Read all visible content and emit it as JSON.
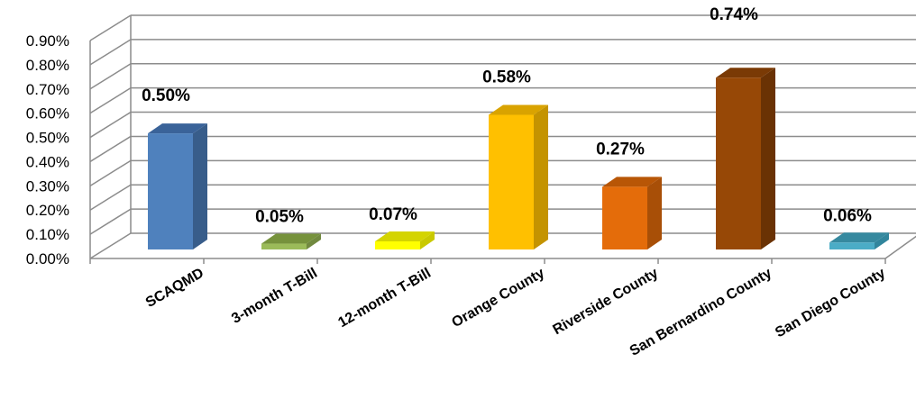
{
  "chart_data": {
    "type": "bar",
    "categories": [
      "SCAQMD",
      "3-month T-Bill",
      "12-month T-Bill",
      "Orange County",
      "Riverside County",
      "San Bernardino County",
      "San Diego County"
    ],
    "values": [
      0.5,
      0.05,
      0.07,
      0.58,
      0.27,
      0.74,
      0.06
    ],
    "data_labels": [
      "0.50%",
      "0.05%",
      "0.07%",
      "0.58%",
      "0.27%",
      "0.74%",
      "0.06%"
    ],
    "y_ticks": [
      "0.00%",
      "0.10%",
      "0.20%",
      "0.30%",
      "0.40%",
      "0.50%",
      "0.60%",
      "0.70%",
      "0.80%",
      "0.90%"
    ],
    "ylim": [
      0,
      0.9
    ],
    "title": "",
    "xlabel": "",
    "ylabel": "",
    "grid": true,
    "style": "3d-column",
    "colors": [
      {
        "front": "#4F81BD",
        "side": "#385D8A",
        "top": "#3A6399"
      },
      {
        "front": "#9BBB59",
        "side": "#71893F",
        "top": "#76923C"
      },
      {
        "front": "#FFFF00",
        "side": "#C9C900",
        "top": "#D4D400"
      },
      {
        "front": "#FFC000",
        "side": "#C49300",
        "top": "#D9A300"
      },
      {
        "front": "#E46C0A",
        "side": "#A84F07",
        "top": "#B85606"
      },
      {
        "front": "#974806",
        "side": "#6A3204",
        "top": "#7A3A05"
      },
      {
        "front": "#4BACC6",
        "side": "#31859C",
        "top": "#36899F"
      }
    ]
  }
}
